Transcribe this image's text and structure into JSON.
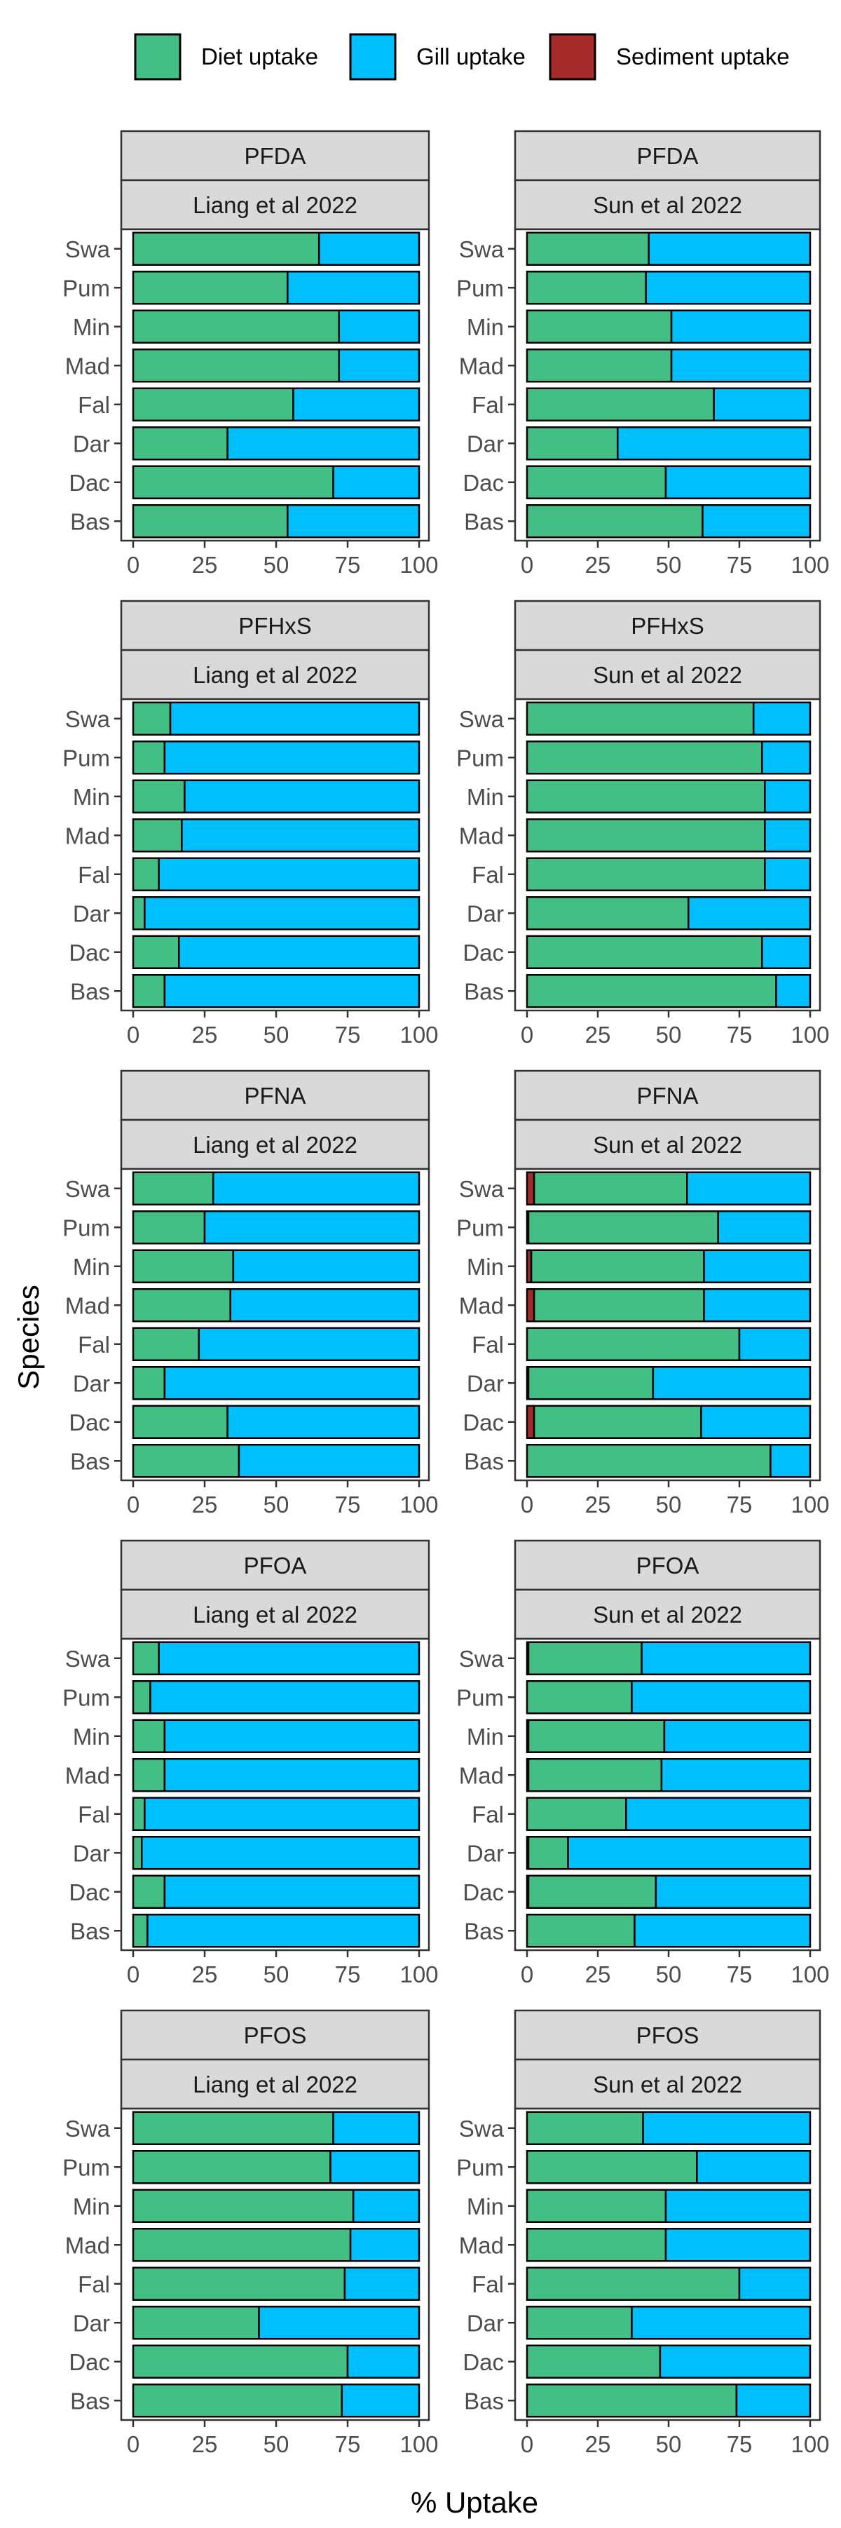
{
  "chart_data": {
    "type": "bar",
    "orientation": "horizontal",
    "stacked": true,
    "xlabel": "% Uptake",
    "ylabel": "Species",
    "xlim": [
      0,
      100
    ],
    "x_ticks": [
      "0",
      "25",
      "50",
      "75",
      "100"
    ],
    "species": [
      "Bas",
      "Dac",
      "Dar",
      "Fal",
      "Mad",
      "Min",
      "Pum",
      "Swa"
    ],
    "legend": {
      "placement": "top",
      "entries": [
        {
          "key": "diet",
          "label": "Diet uptake",
          "color": "#43bf86"
        },
        {
          "key": "gill",
          "label": "Gill uptake",
          "color": "#00bfff"
        },
        {
          "key": "sediment",
          "label": "Sediment uptake",
          "color": "#a52a2a"
        }
      ]
    },
    "grid": false,
    "panels": [
      {
        "compound": "PFDA",
        "study": "Liang et al 2022",
        "row": 0,
        "col": 0,
        "sediment": {
          "Bas": 0,
          "Dac": 0,
          "Dar": 0,
          "Fal": 0,
          "Mad": 0,
          "Min": 0,
          "Pum": 0,
          "Swa": 0
        },
        "diet": {
          "Bas": 54,
          "Dac": 70,
          "Dar": 33,
          "Fal": 56,
          "Mad": 72,
          "Min": 72,
          "Pum": 54,
          "Swa": 65
        }
      },
      {
        "compound": "PFDA",
        "study": "Sun et al 2022",
        "row": 0,
        "col": 1,
        "sediment": {
          "Bas": 0,
          "Dac": 0,
          "Dar": 0,
          "Fal": 0,
          "Mad": 0,
          "Min": 0,
          "Pum": 0,
          "Swa": 0
        },
        "diet": {
          "Bas": 62,
          "Dac": 49,
          "Dar": 32,
          "Fal": 66,
          "Mad": 51,
          "Min": 51,
          "Pum": 42,
          "Swa": 43
        }
      },
      {
        "compound": "PFHxS",
        "study": "Liang et al 2022",
        "row": 1,
        "col": 0,
        "sediment": {
          "Bas": 0,
          "Dac": 0,
          "Dar": 0,
          "Fal": 0,
          "Mad": 0,
          "Min": 0,
          "Pum": 0,
          "Swa": 0
        },
        "diet": {
          "Bas": 11,
          "Dac": 16,
          "Dar": 4,
          "Fal": 9,
          "Mad": 17,
          "Min": 18,
          "Pum": 11,
          "Swa": 13
        }
      },
      {
        "compound": "PFHxS",
        "study": "Sun et al 2022",
        "row": 1,
        "col": 1,
        "sediment": {
          "Bas": 0,
          "Dac": 0,
          "Dar": 0,
          "Fal": 0,
          "Mad": 0,
          "Min": 0,
          "Pum": 0,
          "Swa": 0
        },
        "diet": {
          "Bas": 88,
          "Dac": 83,
          "Dar": 57,
          "Fal": 84,
          "Mad": 84,
          "Min": 84,
          "Pum": 83,
          "Swa": 80
        }
      },
      {
        "compound": "PFNA",
        "study": "Liang et al 2022",
        "row": 2,
        "col": 0,
        "sediment": {
          "Bas": 0,
          "Dac": 0,
          "Dar": 0,
          "Fal": 0,
          "Mad": 0,
          "Min": 0,
          "Pum": 0,
          "Swa": 0
        },
        "diet": {
          "Bas": 37,
          "Dac": 33,
          "Dar": 11,
          "Fal": 23,
          "Mad": 34,
          "Min": 35,
          "Pum": 25,
          "Swa": 28
        }
      },
      {
        "compound": "PFNA",
        "study": "Sun et al 2022",
        "row": 2,
        "col": 1,
        "sediment": {
          "Bas": 0,
          "Dac": 2.5,
          "Dar": 0.5,
          "Fal": 0,
          "Mad": 2.5,
          "Min": 1.5,
          "Pum": 0.5,
          "Swa": 2.5
        },
        "diet": {
          "Bas": 86,
          "Dac": 59,
          "Dar": 44,
          "Fal": 75,
          "Mad": 60,
          "Min": 61,
          "Pum": 67,
          "Swa": 54
        }
      },
      {
        "compound": "PFOA",
        "study": "Liang et al 2022",
        "row": 3,
        "col": 0,
        "sediment": {
          "Bas": 0,
          "Dac": 0,
          "Dar": 0,
          "Fal": 0,
          "Mad": 0,
          "Min": 0,
          "Pum": 0,
          "Swa": 0
        },
        "diet": {
          "Bas": 5,
          "Dac": 11,
          "Dar": 3,
          "Fal": 4,
          "Mad": 11,
          "Min": 11,
          "Pum": 6,
          "Swa": 9
        }
      },
      {
        "compound": "PFOA",
        "study": "Sun et al 2022",
        "row": 3,
        "col": 1,
        "sediment": {
          "Bas": 0,
          "Dac": 0.5,
          "Dar": 0.5,
          "Fal": 0,
          "Mad": 0.5,
          "Min": 0.5,
          "Pum": 0,
          "Swa": 0.5
        },
        "diet": {
          "Bas": 38,
          "Dac": 45,
          "Dar": 14,
          "Fal": 35,
          "Mad": 47,
          "Min": 48,
          "Pum": 37,
          "Swa": 40
        }
      },
      {
        "compound": "PFOS",
        "study": "Liang et al 2022",
        "row": 4,
        "col": 0,
        "sediment": {
          "Bas": 0,
          "Dac": 0,
          "Dar": 0,
          "Fal": 0,
          "Mad": 0,
          "Min": 0,
          "Pum": 0,
          "Swa": 0
        },
        "diet": {
          "Bas": 73,
          "Dac": 75,
          "Dar": 44,
          "Fal": 74,
          "Mad": 76,
          "Min": 77,
          "Pum": 69,
          "Swa": 70
        }
      },
      {
        "compound": "PFOS",
        "study": "Sun et al 2022",
        "row": 4,
        "col": 1,
        "sediment": {
          "Bas": 0,
          "Dac": 0,
          "Dar": 0,
          "Fal": 0,
          "Mad": 0,
          "Min": 0,
          "Pum": 0,
          "Swa": 0
        },
        "diet": {
          "Bas": 74,
          "Dac": 47,
          "Dar": 37,
          "Fal": 75,
          "Mad": 49,
          "Min": 49,
          "Pum": 60,
          "Swa": 41
        }
      }
    ]
  }
}
